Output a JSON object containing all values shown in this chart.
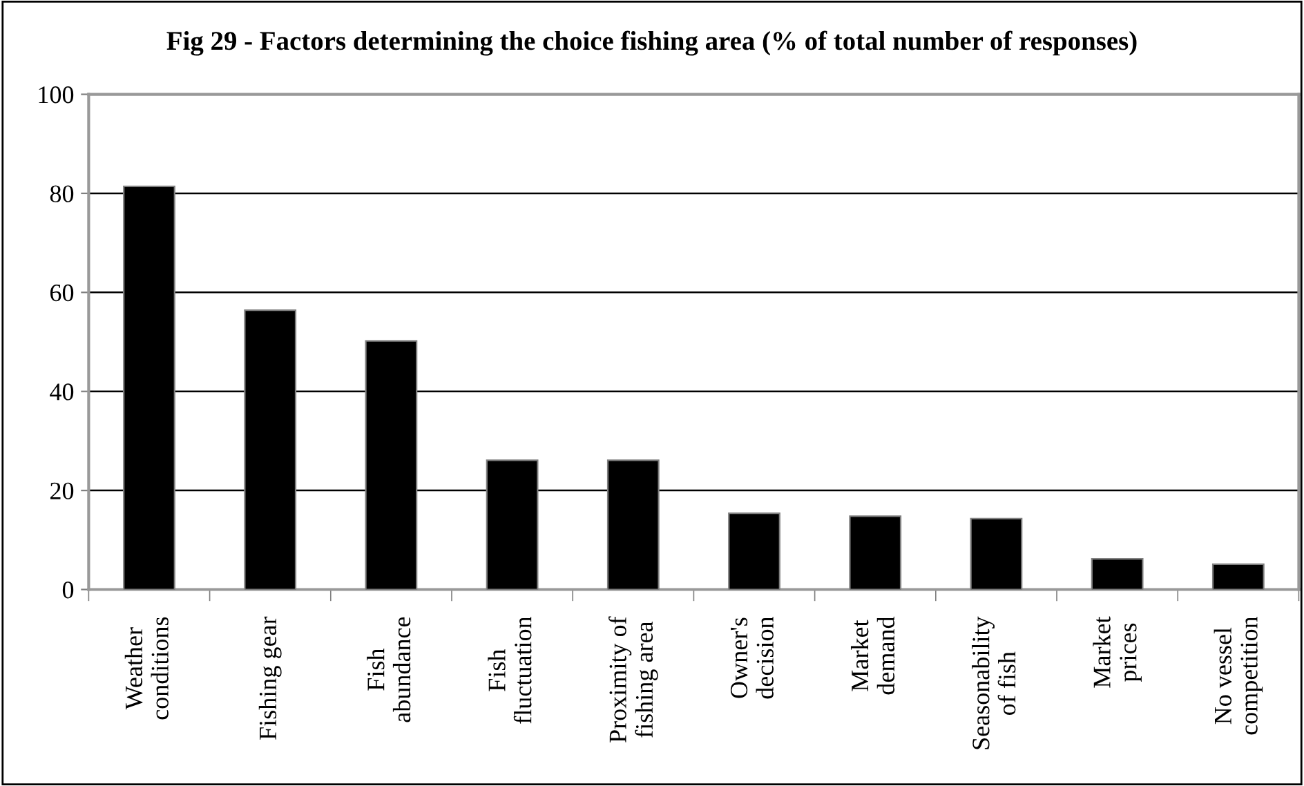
{
  "chart_data": {
    "type": "bar",
    "title": "Fig 29 - Factors determining the choice fishing area (% of total number of responses)",
    "categories": [
      "Weather\nconditions",
      "Fishing gear",
      "Fish\nabundance",
      "Fish\nfluctuation",
      "Proximity of\nfishing area",
      "Owner's\ndecision",
      "Market\ndemand",
      "Seasonability\nof fish",
      "Market\nprices",
      "No vessel\ncompetition"
    ],
    "values": [
      81.4,
      56.4,
      50.2,
      26.1,
      26.1,
      15.4,
      14.8,
      14.3,
      6.2,
      5.1
    ],
    "color": "#000000",
    "ylim": [
      0,
      100
    ],
    "yticks": [
      0,
      20,
      40,
      60,
      80,
      100
    ],
    "grid": "y",
    "legend": false
  }
}
